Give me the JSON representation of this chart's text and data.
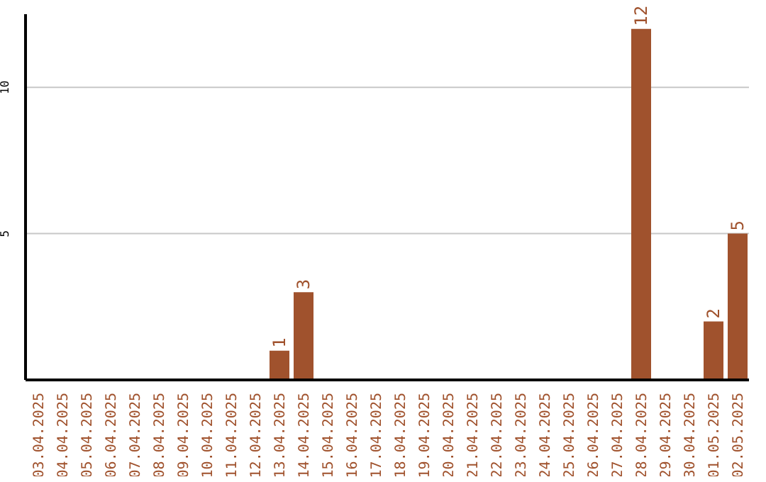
{
  "chart_data": {
    "type": "bar",
    "categories": [
      "03.04.2025",
      "04.04.2025",
      "05.04.2025",
      "06.04.2025",
      "07.04.2025",
      "08.04.2025",
      "09.04.2025",
      "10.04.2025",
      "11.04.2025",
      "12.04.2025",
      "13.04.2025",
      "14.04.2025",
      "15.04.2025",
      "16.04.2025",
      "17.04.2025",
      "18.04.2025",
      "19.04.2025",
      "20.04.2025",
      "21.04.2025",
      "22.04.2025",
      "23.04.2025",
      "24.04.2025",
      "25.04.2025",
      "26.04.2025",
      "27.04.2025",
      "28.04.2025",
      "29.04.2025",
      "30.04.2025",
      "01.05.2025",
      "02.05.2025"
    ],
    "values": [
      0,
      0,
      0,
      0,
      0,
      0,
      0,
      0,
      0,
      0,
      1,
      3,
      0,
      0,
      0,
      0,
      0,
      0,
      0,
      0,
      0,
      0,
      0,
      0,
      0,
      12,
      0,
      0,
      2,
      5
    ],
    "value_labels": [
      null,
      null,
      null,
      null,
      null,
      null,
      null,
      null,
      null,
      null,
      "1",
      "3",
      null,
      null,
      null,
      null,
      null,
      null,
      null,
      null,
      null,
      null,
      null,
      null,
      null,
      "12",
      null,
      null,
      "2",
      "5"
    ],
    "color": "#a0522d",
    "ylim": [
      0,
      12.5
    ],
    "yticks": [
      5,
      10
    ],
    "grid": "y"
  }
}
